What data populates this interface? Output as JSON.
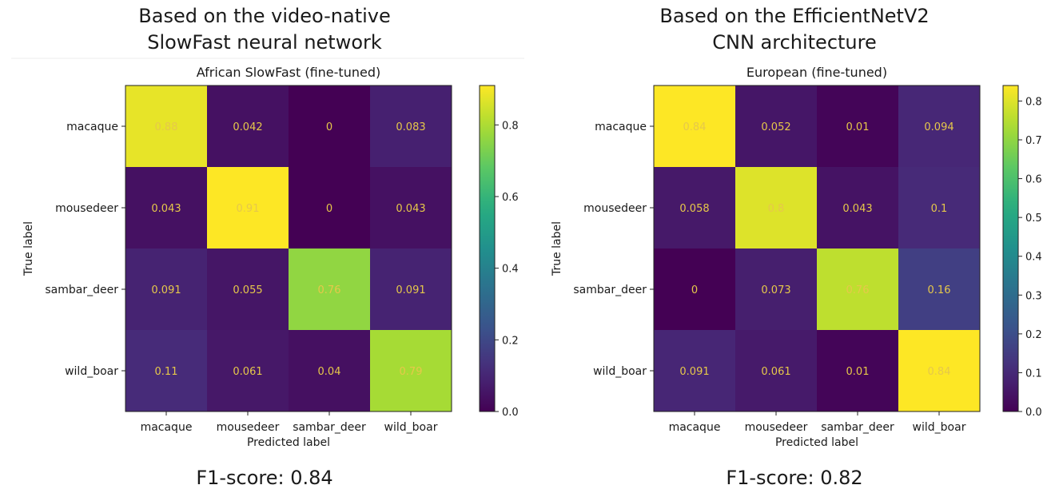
{
  "panels": [
    {
      "caption_lines": [
        "Based on the video-native",
        "SlowFast neural network"
      ],
      "f1_label": "F1-score: 0.84",
      "chart_data": {
        "type": "heatmap",
        "title": "African SlowFast (fine-tuned)",
        "xlabel": "Predicted label",
        "ylabel": "True label",
        "x_categories": [
          "macaque",
          "mousedeer",
          "sambar_deer",
          "wild_boar"
        ],
        "y_categories": [
          "macaque",
          "mousedeer",
          "sambar_deer",
          "wild_boar"
        ],
        "values": [
          [
            0.88,
            0.042,
            0,
            0.083
          ],
          [
            0.043,
            0.91,
            0,
            0.043
          ],
          [
            0.091,
            0.055,
            0.76,
            0.091
          ],
          [
            0.11,
            0.061,
            0.04,
            0.79
          ]
        ],
        "value_labels": [
          [
            "0.88",
            "0.042",
            "0",
            "0.083"
          ],
          [
            "0.043",
            "0.91",
            "0",
            "0.043"
          ],
          [
            "0.091",
            "0.055",
            "0.76",
            "0.091"
          ],
          [
            "0.11",
            "0.061",
            "0.04",
            "0.79"
          ]
        ],
        "colormap": "viridis",
        "colorbar": {
          "range": [
            0,
            0.91
          ],
          "ticks": [
            0.0,
            0.2,
            0.4,
            0.6,
            0.8
          ],
          "tick_labels": [
            "0.0",
            "0.2",
            "0.4",
            "0.6",
            "0.8"
          ]
        },
        "text_color": "#e6c84a"
      }
    },
    {
      "caption_lines": [
        "Based on the EfficientNetV2",
        "CNN architecture"
      ],
      "f1_label": "F1-score: 0.82",
      "chart_data": {
        "type": "heatmap",
        "title": "European (fine-tuned)",
        "xlabel": "Predicted label",
        "ylabel": "True label",
        "x_categories": [
          "macaque",
          "mousedeer",
          "sambar_deer",
          "wild_boar"
        ],
        "y_categories": [
          "macaque",
          "mousedeer",
          "sambar_deer",
          "wild_boar"
        ],
        "values": [
          [
            0.84,
            0.052,
            0.01,
            0.094
          ],
          [
            0.058,
            0.8,
            0.043,
            0.1
          ],
          [
            0,
            0.073,
            0.76,
            0.16
          ],
          [
            0.091,
            0.061,
            0.01,
            0.84
          ]
        ],
        "value_labels": [
          [
            "0.84",
            "0.052",
            "0.01",
            "0.094"
          ],
          [
            "0.058",
            "0.8",
            "0.043",
            "0.1"
          ],
          [
            "0",
            "0.073",
            "0.76",
            "0.16"
          ],
          [
            "0.091",
            "0.061",
            "0.01",
            "0.84"
          ]
        ],
        "colormap": "viridis",
        "colorbar": {
          "range": [
            0,
            0.84
          ],
          "ticks": [
            0.0,
            0.1,
            0.2,
            0.3,
            0.4,
            0.5,
            0.6,
            0.7,
            0.8
          ],
          "tick_labels": [
            "0.0",
            "0.1",
            "0.2",
            "0.3",
            "0.4",
            "0.5",
            "0.6",
            "0.7",
            "0.8"
          ]
        },
        "text_color": "#e6c84a"
      }
    }
  ]
}
